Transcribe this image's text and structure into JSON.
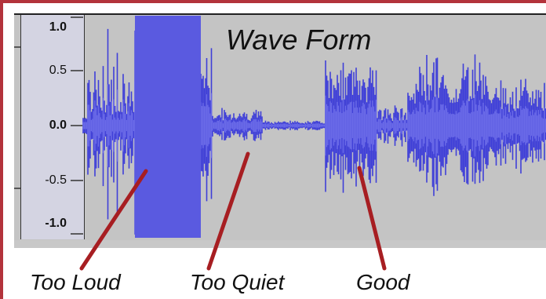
{
  "title": "Wave Form",
  "ruler": {
    "ticks": [
      {
        "label": "1.0",
        "value": 1.0,
        "bold": true
      },
      {
        "label": "0.5",
        "value": 0.5,
        "bold": false
      },
      {
        "label": "0.0",
        "value": 0.0,
        "bold": true
      },
      {
        "label": "-0.5",
        "value": -0.5,
        "bold": false
      },
      {
        "label": "-1.0",
        "value": -1.0,
        "bold": true
      }
    ]
  },
  "annotations": [
    {
      "label": "Too Loud",
      "segment": "clipped"
    },
    {
      "label": "Too Quiet",
      "segment": "quiet"
    },
    {
      "label": "Good",
      "segment": "normal"
    }
  ],
  "colors": {
    "border": "#b3333b",
    "waveform": "#3f3fd8",
    "waveform_rms": "#6a6ae8",
    "clipped_fill": "#5a5ae0",
    "pointer": "#a71e22",
    "track_bg": "#c4c4c4"
  }
}
